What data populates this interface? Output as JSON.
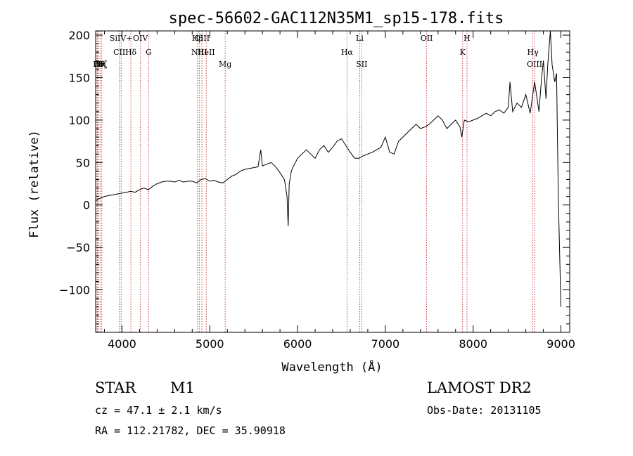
{
  "chart_data": {
    "type": "line",
    "title": "spec-56602-GAC112N35M1_sp15-178.fits",
    "xlabel": "Wavelength (Å)",
    "ylabel": "Flux (relative)",
    "xlim": [
      3700,
      9100
    ],
    "ylim": [
      -150,
      205
    ],
    "x_ticks": [
      4000,
      5000,
      6000,
      7000,
      8000,
      9000
    ],
    "y_ticks": [
      -100,
      -50,
      0,
      50,
      100,
      150,
      200
    ],
    "grid": false,
    "colors": {
      "spectrum": "#000000",
      "line_markers": "#b22222"
    },
    "series": [
      {
        "x": [
          3700,
          3750,
          3800,
          3850,
          3900,
          3950,
          4000,
          4050,
          4100,
          4150,
          4200,
          4250,
          4300,
          4350,
          4400,
          4450,
          4500,
          4550,
          4600,
          4650,
          4700,
          4750,
          4800,
          4850,
          4900,
          4950,
          5000,
          5050,
          5100,
          5150,
          5200,
          5250,
          5300,
          5350,
          5400,
          5450,
          5500,
          5550,
          5580,
          5600,
          5650,
          5700,
          5750,
          5800,
          5850,
          5880,
          5893,
          5905,
          5930,
          5950,
          6000,
          6050,
          6100,
          6150,
          6200,
          6250,
          6300,
          6350,
          6400,
          6450,
          6500,
          6550,
          6600,
          6650,
          6700,
          6750,
          6800,
          6850,
          6900,
          6950,
          7000,
          7050,
          7100,
          7150,
          7200,
          7250,
          7300,
          7350,
          7400,
          7450,
          7500,
          7550,
          7600,
          7650,
          7700,
          7750,
          7800,
          7850,
          7870,
          7900,
          7950,
          8000,
          8050,
          8100,
          8150,
          8200,
          8250,
          8300,
          8350,
          8400,
          8420,
          8450,
          8500,
          8550,
          8600,
          8650,
          8700,
          8750,
          8780,
          8800,
          8830,
          8850,
          8880,
          8900,
          8930,
          8950,
          8970,
          9000
        ],
        "y": [
          5,
          8,
          10,
          11,
          12,
          13,
          14,
          15,
          16,
          15,
          18,
          20,
          18,
          22,
          25,
          27,
          28,
          28,
          27,
          29,
          27,
          28,
          28,
          26,
          30,
          31,
          28,
          29,
          27,
          26,
          30,
          34,
          36,
          40,
          42,
          43,
          44,
          45,
          65,
          46,
          48,
          50,
          45,
          38,
          30,
          10,
          -25,
          25,
          40,
          45,
          55,
          60,
          65,
          60,
          55,
          65,
          70,
          62,
          68,
          75,
          78,
          70,
          62,
          55,
          55,
          58,
          60,
          62,
          65,
          68,
          80,
          62,
          60,
          75,
          80,
          85,
          90,
          95,
          90,
          92,
          95,
          100,
          105,
          100,
          90,
          95,
          100,
          92,
          80,
          100,
          98,
          100,
          102,
          105,
          108,
          105,
          110,
          112,
          108,
          115,
          145,
          110,
          120,
          115,
          130,
          108,
          145,
          110,
          150,
          170,
          125,
          165,
          205,
          165,
          145,
          155,
          10,
          -120
        ]
      }
    ],
    "line_markers": [
      {
        "x": 3716,
        "label": "A"
      },
      {
        "x": 3722,
        "label": "H"
      },
      {
        "x": 3734,
        "label": "Hθ"
      },
      {
        "x": 3750,
        "label": "Hη"
      },
      {
        "x": 3770,
        "label": "Hζ"
      },
      {
        "x": 3970,
        "label": "CII"
      },
      {
        "x": 3990,
        "label": "SiIV+"
      },
      {
        "x": 4101,
        "label": "Hδ"
      },
      {
        "x": 4210,
        "label": "OIV"
      },
      {
        "x": 4304,
        "label": "G"
      },
      {
        "x": 4861,
        "label": "Hβ"
      },
      {
        "x": 4880,
        "label": "NIII"
      },
      {
        "x": 4910,
        "label": "OIII"
      },
      {
        "x": 4960,
        "label": "HeII"
      },
      {
        "x": 5175,
        "label": "Mg"
      },
      {
        "x": 6563,
        "label": "Hα"
      },
      {
        "x": 6708,
        "label": "Li"
      },
      {
        "x": 6731,
        "label": "SII"
      },
      {
        "x": 7470,
        "label": "OII"
      },
      {
        "x": 7880,
        "label": "K"
      },
      {
        "x": 7930,
        "label": "H"
      },
      {
        "x": 8680,
        "label": "Hγ"
      },
      {
        "x": 8700,
        "label": "OIII"
      }
    ]
  },
  "info": {
    "object_class": "STAR",
    "subclass": "M1",
    "survey": "LAMOST DR2",
    "cz": "cz = 47.1 ± 2.1 km/s",
    "obs_date": "Obs-Date: 20131105",
    "coords": "RA = 112.21782, DEC =  35.90918"
  }
}
